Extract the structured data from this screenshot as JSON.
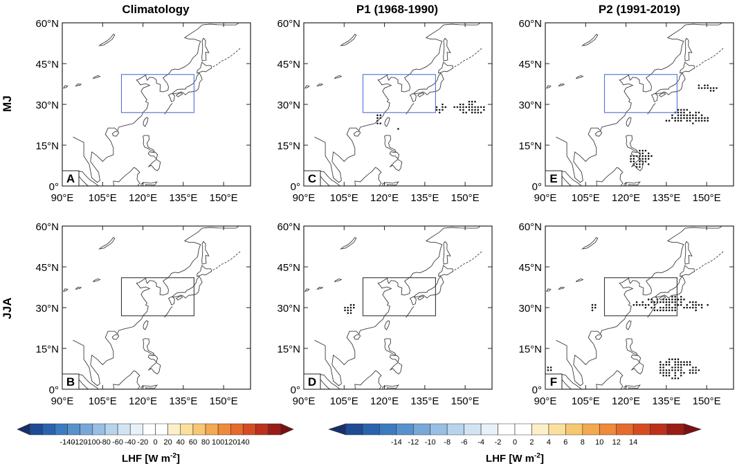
{
  "columns": [
    "Climatology",
    "P1 (1968-1990)",
    "P2 (1991-2019)"
  ],
  "rows": [
    "MJ",
    "JJA"
  ],
  "panels": [
    {
      "letter": "A",
      "row": 0,
      "col": 0,
      "kind": "clim",
      "box_color": "#4f6fd8"
    },
    {
      "letter": "C",
      "row": 0,
      "col": 1,
      "kind": "p1mj",
      "box_color": "#4f6fd8"
    },
    {
      "letter": "E",
      "row": 0,
      "col": 2,
      "kind": "p2mj",
      "box_color": "#4f6fd8"
    },
    {
      "letter": "B",
      "row": 1,
      "col": 0,
      "kind": "clim2",
      "box_color": "#333333"
    },
    {
      "letter": "D",
      "row": 1,
      "col": 1,
      "kind": "p1jja",
      "box_color": "#333333"
    },
    {
      "letter": "F",
      "row": 1,
      "col": 2,
      "kind": "p2jja",
      "box_color": "#333333"
    }
  ],
  "lat_ticks": [
    "60°N",
    "45°N",
    "30°N",
    "15°N",
    "0°"
  ],
  "lon_ticks": [
    "90°E",
    "105°E",
    "120°E",
    "135°E",
    "150°E"
  ],
  "colorbar_left": {
    "labels": [
      "-140",
      "-120",
      "-100",
      "-80",
      "-60",
      "-40",
      "-20",
      "0",
      "20",
      "40",
      "60",
      "80",
      "100",
      "120",
      "140"
    ],
    "title": "LHF [W m",
    "title_sup": "-2",
    "title_end": "]"
  },
  "colorbar_right": {
    "labels": [
      "-14",
      "-12",
      "-10",
      "-8",
      "-6",
      "-4",
      "-2",
      "0",
      "2",
      "4",
      "6",
      "8",
      "10",
      "12",
      "14"
    ],
    "title": "LHF [W m",
    "title_sup": "-2",
    "title_end": "]"
  },
  "palette": [
    "#17306b",
    "#1f4a94",
    "#2a62ae",
    "#3b7bc0",
    "#5892cd",
    "#77a8d8",
    "#98bfe3",
    "#b7d4ec",
    "#d2e4f3",
    "#e8f1f8",
    "#ffffff",
    "#ffffff",
    "#fdf0c8",
    "#fbdf9c",
    "#f8c772",
    "#f4a852",
    "#ef893b",
    "#e66a2c",
    "#d64c22",
    "#bd301c",
    "#9a1c17",
    "#7a1013"
  ]
}
